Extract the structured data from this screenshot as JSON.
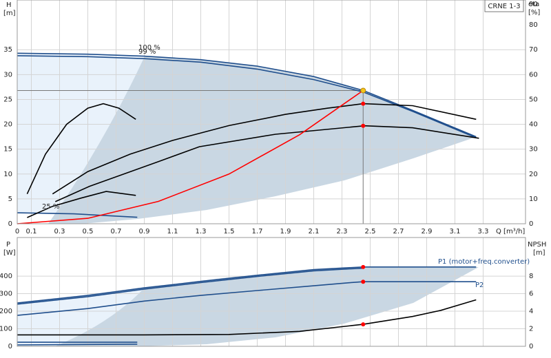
{
  "chart_data": [
    {
      "type": "line",
      "y_label": "H",
      "y_unit": "[m]",
      "y2_label": "eta",
      "y2_unit": "[%]",
      "x_label": "Q [m³/h]",
      "model": "CRNE 1-3",
      "xlim": [
        0,
        3.6
      ],
      "xticks": [
        0,
        0.1,
        0.3,
        0.5,
        0.7,
        0.9,
        1.1,
        1.3,
        1.5,
        1.7,
        1.9,
        2.1,
        2.3,
        2.5,
        2.7,
        2.9,
        3.1,
        3.3
      ],
      "ylim": [
        0,
        45
      ],
      "yticks": [
        0,
        5,
        10,
        15,
        20,
        25,
        30,
        35
      ],
      "y2lim": [
        0,
        90
      ],
      "y2ticks": [
        0,
        10,
        20,
        30,
        40,
        50,
        60,
        70,
        80,
        90
      ],
      "grid": true,
      "series": [
        {
          "name": "100 %",
          "color": "#1f4e8c",
          "x": [
            0,
            0.5,
            0.9,
            1.3,
            1.7,
            2.1,
            2.45,
            2.8,
            3.25
          ],
          "values": [
            34.3,
            34.1,
            33.7,
            33,
            31.7,
            29.6,
            26.8,
            22.8,
            17.5
          ]
        },
        {
          "name": "99 %",
          "color": "#1f4e8c",
          "x": [
            0,
            0.5,
            0.9,
            1.3,
            1.7,
            2.1,
            2.45,
            2.8,
            3.25
          ],
          "values": [
            33.8,
            33.6,
            33.2,
            32.5,
            31.1,
            29,
            26.5,
            22.6,
            17.3
          ]
        },
        {
          "name": "25 %",
          "color": "#1f4e8c",
          "x": [
            0,
            0.4,
            0.85
          ],
          "values": [
            2.2,
            2,
            1.3
          ]
        },
        {
          "color": "#000000",
          "axis": "y2",
          "x": [
            0.25,
            0.5,
            0.8,
            1.1,
            1.5,
            1.9,
            2.2,
            2.45,
            2.8,
            3.25
          ],
          "values": [
            12,
            21,
            28,
            33.5,
            39.5,
            44,
            46.5,
            48.3,
            47.5,
            42
          ]
        },
        {
          "color": "#000000",
          "axis": "y2",
          "x": [
            0.27,
            0.51,
            1,
            1.29,
            1.83,
            2.46,
            2.8,
            3.27
          ],
          "values": [
            8.9,
            15,
            25,
            31,
            36,
            39.4,
            38.6,
            34.4
          ]
        },
        {
          "color": "#000000",
          "axis": "y2",
          "x": [
            0.07,
            0.2,
            0.35,
            0.5,
            0.61,
            0.72,
            0.84
          ],
          "values": [
            12,
            28,
            40,
            46.5,
            48.3,
            46.5,
            42
          ]
        },
        {
          "color": "#000000",
          "axis": "y2",
          "x": [
            0.07,
            0.25,
            0.45,
            0.63,
            0.84
          ],
          "values": [
            2.5,
            7,
            10.3,
            13,
            11.4
          ]
        },
        {
          "color": "#ff0000",
          "x": [
            0,
            0.5,
            1,
            1.5,
            2,
            2.45
          ],
          "values": [
            0,
            1.1,
            4.5,
            10,
            17.9,
            26.8
          ]
        }
      ],
      "markers": [
        {
          "x": 2.45,
          "y": 48.3,
          "axis": "y2",
          "color": "#ff0000"
        },
        {
          "x": 2.45,
          "y": 39.4,
          "axis": "y2",
          "color": "#ff0000"
        }
      ],
      "duty_point": {
        "x": 2.45,
        "y": 26.8,
        "color": "#f5c518"
      }
    },
    {
      "type": "line",
      "y_label": "P",
      "y_unit": "[W]",
      "y2_label": "NPSH",
      "y2_unit": "[m]",
      "xlim": [
        0,
        3.6
      ],
      "ylim": [
        0,
        620
      ],
      "yticks": [
        0,
        100,
        200,
        300,
        400
      ],
      "y2lim": [
        0,
        12.4
      ],
      "y2ticks": [
        0,
        2,
        4,
        6,
        8
      ],
      "grid": true,
      "series": [
        {
          "name": "P1 (motor+freq.converter)",
          "color": "#1f4e8c",
          "x": [
            0,
            0.5,
            0.9,
            1.3,
            1.7,
            2.1,
            2.35,
            2.45,
            3.25
          ],
          "values": [
            247,
            290,
            333,
            370,
            405,
            437,
            448,
            452,
            452
          ]
        },
        {
          "color": "#1f4e8c",
          "x": [
            0,
            0.5,
            0.9,
            1.3,
            1.7,
            2.1,
            2.35,
            2.45
          ],
          "values": [
            240,
            283,
            326,
            363,
            398,
            430,
            441,
            445
          ]
        },
        {
          "name": "P2",
          "color": "#1f4e8c",
          "x": [
            0,
            0.5,
            0.9,
            1.3,
            1.7,
            2.1,
            2.35,
            2.45,
            3.25
          ],
          "values": [
            176,
            215,
            258,
            290,
            318,
            345,
            362,
            368,
            368
          ]
        },
        {
          "color": "#1f4e8c",
          "x": [
            0,
            0.85
          ],
          "values": [
            23,
            23
          ]
        },
        {
          "color": "#1f4e8c",
          "x": [
            0,
            0.85
          ],
          "values": [
            8,
            12
          ]
        },
        {
          "color": "#000000",
          "axis": "y2",
          "x": [
            0,
            0.9,
            1.5,
            2,
            2.45,
            2.8,
            3,
            3.25
          ],
          "values": [
            1.3,
            1.3,
            1.35,
            1.7,
            2.5,
            3.4,
            4.1,
            5.3
          ]
        }
      ],
      "markers": [
        {
          "x": 2.45,
          "y": 452,
          "color": "#ff0000"
        },
        {
          "x": 2.45,
          "y": 368,
          "color": "#ff0000"
        },
        {
          "x": 2.45,
          "y": 2.5,
          "axis": "y2",
          "color": "#ff0000"
        }
      ]
    }
  ]
}
